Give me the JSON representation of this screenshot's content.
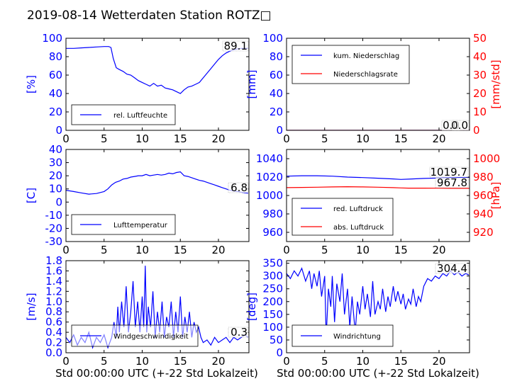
{
  "figure_title": "2019-08-14 Wetterdaten Station ROTZ□",
  "xlabel": "Std 00:00:00 UTC (+-22 Std Lokalzeit)",
  "colors": {
    "primary": "#0000ff",
    "secondary": "#ff0000",
    "axis": "#000000"
  },
  "chart_data": [
    {
      "id": "humidity",
      "type": "line",
      "ylabel": "[%]",
      "xlim": [
        0,
        24
      ],
      "ylim": [
        0,
        100
      ],
      "xticks": [
        0,
        5,
        10,
        15,
        20
      ],
      "yticks": [
        0,
        20,
        40,
        60,
        80,
        100
      ],
      "series": [
        {
          "name": "rel. Luftfeuchte",
          "color": "#0000ff",
          "x": [
            0,
            1,
            2,
            3,
            4,
            5,
            5.6,
            5.9,
            6.2,
            6.6,
            7,
            7.5,
            8,
            8.5,
            9,
            9.5,
            10,
            10.5,
            11,
            11.5,
            12,
            12.5,
            13,
            13.5,
            14,
            14.5,
            15,
            15.5,
            16,
            16.5,
            17,
            17.5,
            18,
            18.5,
            19,
            19.5,
            20,
            20.5,
            21,
            21.5,
            22,
            22.5,
            23,
            23.5,
            23.9
          ],
          "y": [
            89,
            89,
            89.5,
            90,
            90.5,
            91,
            91,
            90,
            78,
            68,
            66,
            64,
            61,
            60,
            57,
            54,
            52,
            50,
            48,
            51,
            48,
            49,
            46,
            45,
            44,
            42,
            40,
            44,
            47,
            48,
            50,
            52,
            57,
            62,
            67,
            72,
            77,
            81,
            84,
            86,
            87.5,
            88.5,
            89,
            89.1,
            89.1
          ]
        }
      ],
      "annotations": [
        "89.1"
      ]
    },
    {
      "id": "precipitation",
      "type": "line",
      "ylabel": "[mm]",
      "ylabel_right": "[mm/std]",
      "xlim": [
        0,
        24
      ],
      "ylim": [
        0,
        100
      ],
      "ylim_right": [
        0,
        50
      ],
      "xticks": [
        0,
        5,
        10,
        15,
        20
      ],
      "yticks": [
        0,
        20,
        40,
        60,
        80,
        100
      ],
      "yticks_right": [
        0,
        10,
        20,
        30,
        40,
        50
      ],
      "series": [
        {
          "name": "kum. Niederschlag",
          "color": "#0000ff",
          "axis": "left",
          "x": [
            0,
            24
          ],
          "y": [
            0,
            0
          ]
        },
        {
          "name": "Niederschlagsrate",
          "color": "#ff0000",
          "axis": "right",
          "x": [
            0,
            24
          ],
          "y": [
            0,
            0
          ]
        }
      ],
      "annotations": [
        "0.0",
        "0.0"
      ]
    },
    {
      "id": "temperature",
      "type": "line",
      "ylabel": "[C]",
      "xlim": [
        0,
        24
      ],
      "ylim": [
        -30,
        40
      ],
      "xticks": [
        0,
        5,
        10,
        15,
        20
      ],
      "yticks": [
        -30,
        -20,
        -10,
        0,
        10,
        20,
        30,
        40
      ],
      "series": [
        {
          "name": "Lufttemperatur",
          "color": "#0000ff",
          "x": [
            0,
            1,
            2,
            3,
            4,
            5,
            5.5,
            6,
            6.5,
            7,
            7.5,
            8,
            8.5,
            9,
            9.5,
            10,
            10.5,
            11,
            11.5,
            12,
            12.5,
            13,
            13.5,
            14,
            14.5,
            15,
            15.5,
            16,
            16.5,
            17,
            17.5,
            18,
            18.5,
            19,
            19.5,
            20,
            20.5,
            21,
            21.5,
            22,
            22.5,
            23,
            23.5,
            23.9
          ],
          "y": [
            9,
            8,
            7,
            6,
            6.5,
            8,
            10,
            13,
            15,
            16,
            17.5,
            18,
            19,
            19.5,
            20,
            20,
            21,
            20,
            20.5,
            21,
            20.5,
            21,
            22,
            21.5,
            22.5,
            23,
            20,
            19.5,
            18.5,
            17.5,
            16.5,
            16,
            15,
            14,
            13,
            12,
            11,
            10,
            9,
            8.5,
            8,
            7.5,
            7,
            6.8
          ]
        }
      ],
      "annotations": [
        "6.8"
      ]
    },
    {
      "id": "pressure",
      "type": "line",
      "ylabel_right": "[hPa]",
      "xlim": [
        0,
        24
      ],
      "ylim": [
        950,
        1050
      ],
      "ylim_right": [
        910,
        1010
      ],
      "xticks": [
        0,
        5,
        10,
        15,
        20
      ],
      "yticks": [
        960,
        980,
        1000,
        1020,
        1040
      ],
      "yticks_right": [
        920,
        940,
        960,
        980,
        1000
      ],
      "series": [
        {
          "name": "red. Luftdruck",
          "color": "#0000ff",
          "axis": "left",
          "x": [
            0,
            2,
            4,
            6,
            8,
            10,
            12,
            14,
            15,
            16,
            18,
            20,
            22,
            24
          ],
          "y": [
            1021,
            1021.5,
            1021.5,
            1021,
            1020,
            1019.5,
            1018.8,
            1018,
            1017.5,
            1017.8,
            1018.5,
            1019,
            1019.5,
            1019.7
          ]
        },
        {
          "name": "abs. Luftdruck",
          "color": "#ff0000",
          "axis": "right",
          "x": [
            0,
            2,
            4,
            6,
            8,
            10,
            12,
            14,
            15,
            16,
            18,
            20,
            22,
            24
          ],
          "y": [
            968.5,
            968.8,
            969,
            969.3,
            969.5,
            969.3,
            969,
            968.5,
            968.2,
            968,
            968,
            967.9,
            967.8,
            967.8
          ]
        }
      ],
      "annotations": [
        "1019.7",
        "967.8"
      ]
    },
    {
      "id": "windspeed",
      "type": "line",
      "ylabel": "[m/s]",
      "xlim": [
        0,
        24
      ],
      "ylim": [
        0,
        1.8
      ],
      "xticks": [
        0,
        5,
        10,
        15,
        20
      ],
      "yticks": [
        0.0,
        0.2,
        0.4,
        0.6,
        0.8,
        1.0,
        1.2,
        1.4,
        1.6,
        1.8
      ],
      "series": [
        {
          "name": "Windgeschwindigkeit",
          "color": "#0000ff",
          "x": [
            0,
            0.5,
            1,
            1.5,
            2,
            2.5,
            3,
            3.5,
            4,
            4.5,
            5,
            5.5,
            6,
            6.3,
            6.6,
            6.8,
            7,
            7.3,
            7.6,
            7.9,
            8.2,
            8.5,
            8.8,
            9.1,
            9.4,
            9.7,
            10,
            10.2,
            10.4,
            10.6,
            10.8,
            11.1,
            11.4,
            11.7,
            12,
            12.3,
            12.6,
            12.9,
            13.2,
            13.5,
            13.8,
            14.1,
            14.4,
            14.7,
            15,
            15.3,
            15.6,
            15.9,
            16.2,
            16.5,
            16.8,
            17.1,
            17.4,
            17.7,
            18,
            18.5,
            19,
            19.5,
            20,
            20.5,
            21,
            21.5,
            22,
            22.5,
            23,
            23.5,
            23.9
          ],
          "y": [
            0.3,
            0.2,
            0.35,
            0.15,
            0.3,
            0.2,
            0.4,
            0.1,
            0.3,
            0.2,
            0.35,
            0.1,
            0.3,
            0.6,
            0.3,
            0.9,
            0.4,
            1.0,
            0.5,
            1.3,
            0.4,
            0.8,
            1.4,
            0.5,
            1.0,
            0.4,
            1.1,
            0.5,
            1.7,
            0.4,
            0.9,
            0.5,
            1.2,
            0.3,
            0.8,
            0.4,
            1.0,
            0.3,
            0.7,
            0.5,
            1.0,
            0.3,
            0.8,
            0.4,
            1.1,
            0.3,
            0.7,
            0.4,
            0.8,
            0.3,
            0.6,
            0.4,
            0.5,
            0.3,
            0.2,
            0.25,
            0.15,
            0.3,
            0.2,
            0.25,
            0.3,
            0.2,
            0.3,
            0.25,
            0.3,
            0.35,
            0.3
          ]
        }
      ],
      "annotations": [
        "0.3"
      ]
    },
    {
      "id": "winddirection",
      "type": "line",
      "ylabel": "[deg]",
      "xlim": [
        0,
        24
      ],
      "ylim": [
        0,
        360
      ],
      "xticks": [
        0,
        5,
        10,
        15,
        20
      ],
      "yticks": [
        0,
        50,
        100,
        150,
        200,
        250,
        300,
        350
      ],
      "series": [
        {
          "name": "Windrichtung",
          "color": "#0000ff",
          "x": [
            0,
            0.5,
            1,
            1.5,
            2,
            2.5,
            3,
            3.3,
            3.6,
            4,
            4.3,
            4.6,
            5,
            5.2,
            5.5,
            5.8,
            6,
            6.3,
            6.6,
            7,
            7.3,
            7.6,
            8,
            8.3,
            8.6,
            9,
            9.3,
            9.6,
            10,
            10.3,
            10.6,
            11,
            11.3,
            11.6,
            12,
            12.3,
            12.6,
            13,
            13.3,
            13.6,
            14,
            14.3,
            14.6,
            15,
            15.3,
            15.6,
            16,
            16.3,
            16.6,
            17,
            17.3,
            17.6,
            18,
            18.5,
            19,
            19.5,
            20,
            20.5,
            21,
            21.5,
            22,
            22.5,
            23,
            23.5,
            23.9
          ],
          "y": [
            310,
            290,
            320,
            300,
            330,
            280,
            320,
            250,
            310,
            260,
            320,
            220,
            300,
            60,
            250,
            180,
            300,
            120,
            270,
            200,
            310,
            150,
            250,
            100,
            220,
            80,
            200,
            150,
            260,
            170,
            230,
            140,
            280,
            150,
            200,
            170,
            250,
            160,
            220,
            180,
            260,
            200,
            240,
            190,
            230,
            170,
            210,
            190,
            250,
            180,
            220,
            200,
            260,
            290,
            280,
            300,
            290,
            310,
            300,
            320,
            305,
            315,
            300,
            310,
            304
          ]
        }
      ],
      "annotations": [
        "304.4"
      ]
    }
  ]
}
